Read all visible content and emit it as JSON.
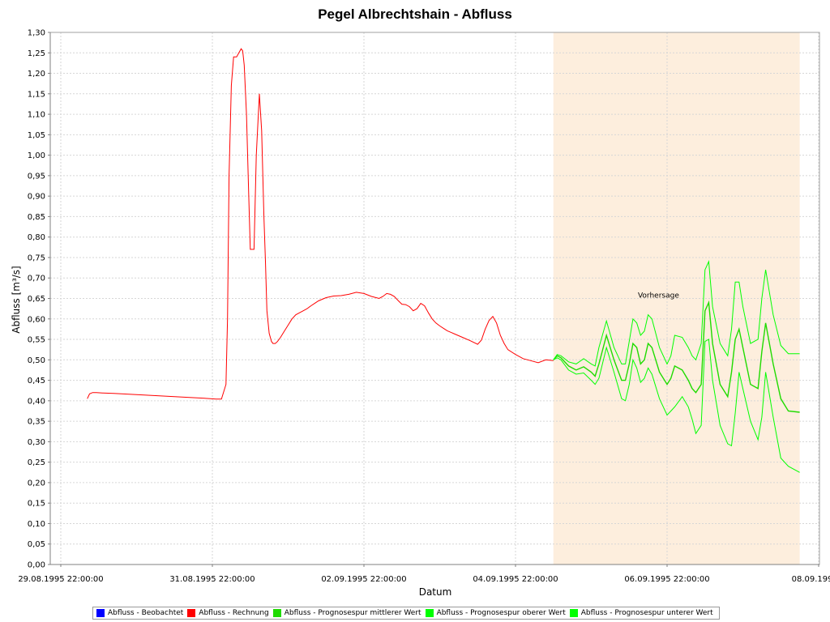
{
  "chart_data": {
    "type": "line",
    "title": "Pegel Albrechtshain - Abfluss",
    "xlabel": "Datum",
    "ylabel": "Abfluss [m³/s]",
    "xlim": [
      0,
      10
    ],
    "ylim": [
      0,
      1.3
    ],
    "grid": true,
    "x_ticks": [
      {
        "x": 0,
        "label": "29.08.1995 22:00:00"
      },
      {
        "x": 2,
        "label": "31.08.1995 22:00:00"
      },
      {
        "x": 4,
        "label": "02.09.1995 22:00:00"
      },
      {
        "x": 6,
        "label": "04.09.1995 22:00:00"
      },
      {
        "x": 8,
        "label": "06.09.1995 22:00:00"
      },
      {
        "x": 10,
        "label": "08.09.1995 2"
      }
    ],
    "y_ticks": [
      {
        "y": 0.0,
        "label": "0,00"
      },
      {
        "y": 0.05,
        "label": "0,05"
      },
      {
        "y": 0.1,
        "label": "0,10"
      },
      {
        "y": 0.15,
        "label": "0,15"
      },
      {
        "y": 0.2,
        "label": "0,20"
      },
      {
        "y": 0.25,
        "label": "0,25"
      },
      {
        "y": 0.3,
        "label": "0,30"
      },
      {
        "y": 0.35,
        "label": "0,35"
      },
      {
        "y": 0.4,
        "label": "0,40"
      },
      {
        "y": 0.45,
        "label": "0,45"
      },
      {
        "y": 0.5,
        "label": "0,50"
      },
      {
        "y": 0.55,
        "label": "0,55"
      },
      {
        "y": 0.6,
        "label": "0,60"
      },
      {
        "y": 0.65,
        "label": "0,65"
      },
      {
        "y": 0.7,
        "label": "0,70"
      },
      {
        "y": 0.75,
        "label": "0,75"
      },
      {
        "y": 0.8,
        "label": "0,80"
      },
      {
        "y": 0.85,
        "label": "0,85"
      },
      {
        "y": 0.9,
        "label": "0,90"
      },
      {
        "y": 0.95,
        "label": "0,95"
      },
      {
        "y": 1.0,
        "label": "1,00"
      },
      {
        "y": 1.05,
        "label": "1,05"
      },
      {
        "y": 1.1,
        "label": "1,10"
      },
      {
        "y": 1.15,
        "label": "1,15"
      },
      {
        "y": 1.2,
        "label": "1,20"
      },
      {
        "y": 1.25,
        "label": "1,25"
      },
      {
        "y": 1.3,
        "label": "1,30"
      }
    ],
    "forecast_region": {
      "x_start": 6.5,
      "x_end": 9.75,
      "label": "Vorhersage",
      "label_x": 7.85,
      "label_y": 0.66,
      "color": "#fdeedd"
    },
    "series": [
      {
        "name": "Abfluss - Beobachtet",
        "color": "#0000ff",
        "x": [
          0.35,
          6.5
        ],
        "y": [
          0.0,
          0.0
        ]
      },
      {
        "name": "Abfluss - Rechnung",
        "color": "#ff0000",
        "x": [
          0.35,
          0.38,
          0.42,
          0.47,
          0.55,
          0.7,
          0.9,
          1.1,
          1.3,
          1.5,
          1.7,
          1.9,
          2.05,
          2.12,
          2.18,
          2.2,
          2.22,
          2.25,
          2.28,
          2.32,
          2.35,
          2.38,
          2.4,
          2.42,
          2.45,
          2.48,
          2.5,
          2.52,
          2.55,
          2.58,
          2.62,
          2.65,
          2.68,
          2.7,
          2.72,
          2.75,
          2.78,
          2.8,
          2.83,
          2.86,
          2.9,
          2.95,
          3.0,
          3.05,
          3.1,
          3.15,
          3.2,
          3.25,
          3.3,
          3.35,
          3.4,
          3.5,
          3.6,
          3.7,
          3.8,
          3.9,
          4.0,
          4.1,
          4.2,
          4.25,
          4.3,
          4.35,
          4.4,
          4.45,
          4.5,
          4.55,
          4.6,
          4.65,
          4.7,
          4.75,
          4.8,
          4.85,
          4.9,
          4.95,
          5.0,
          5.05,
          5.1,
          5.15,
          5.2,
          5.3,
          5.4,
          5.5,
          5.55,
          5.6,
          5.65,
          5.7,
          5.75,
          5.8,
          5.85,
          5.9,
          6.0,
          6.1,
          6.2,
          6.3,
          6.4,
          6.5
        ],
        "y": [
          0.405,
          0.417,
          0.42,
          0.42,
          0.419,
          0.418,
          0.416,
          0.414,
          0.412,
          0.41,
          0.408,
          0.406,
          0.404,
          0.404,
          0.44,
          0.6,
          0.95,
          1.17,
          1.24,
          1.24,
          1.25,
          1.26,
          1.255,
          1.22,
          1.1,
          0.9,
          0.77,
          0.77,
          0.77,
          1.0,
          1.15,
          1.06,
          0.85,
          0.74,
          0.62,
          0.565,
          0.545,
          0.54,
          0.54,
          0.545,
          0.555,
          0.57,
          0.585,
          0.6,
          0.61,
          0.615,
          0.62,
          0.625,
          0.632,
          0.638,
          0.644,
          0.652,
          0.656,
          0.657,
          0.66,
          0.665,
          0.662,
          0.655,
          0.65,
          0.655,
          0.662,
          0.66,
          0.655,
          0.645,
          0.636,
          0.635,
          0.63,
          0.62,
          0.625,
          0.638,
          0.632,
          0.615,
          0.6,
          0.59,
          0.583,
          0.577,
          0.571,
          0.567,
          0.563,
          0.555,
          0.547,
          0.538,
          0.548,
          0.575,
          0.596,
          0.606,
          0.59,
          0.56,
          0.54,
          0.525,
          0.513,
          0.503,
          0.498,
          0.493,
          0.5,
          0.498
        ]
      },
      {
        "name": "Abfluss - Prognosespur mittlerer Wert",
        "color": "#1fdb00",
        "x": [
          6.5,
          6.55,
          6.6,
          6.7,
          6.8,
          6.9,
          7.0,
          7.05,
          7.1,
          7.2,
          7.3,
          7.4,
          7.45,
          7.5,
          7.55,
          7.6,
          7.65,
          7.7,
          7.75,
          7.8,
          7.9,
          8.0,
          8.05,
          8.1,
          8.2,
          8.28,
          8.33,
          8.38,
          8.45,
          8.5,
          8.55,
          8.6,
          8.7,
          8.8,
          8.85,
          8.9,
          8.95,
          9.0,
          9.1,
          9.2,
          9.25,
          9.3,
          9.4,
          9.5,
          9.6,
          9.75
        ],
        "y": [
          0.5,
          0.51,
          0.505,
          0.485,
          0.475,
          0.483,
          0.47,
          0.46,
          0.49,
          0.56,
          0.5,
          0.45,
          0.45,
          0.49,
          0.54,
          0.53,
          0.49,
          0.5,
          0.54,
          0.53,
          0.47,
          0.44,
          0.455,
          0.485,
          0.475,
          0.45,
          0.43,
          0.42,
          0.44,
          0.62,
          0.64,
          0.54,
          0.44,
          0.41,
          0.47,
          0.55,
          0.575,
          0.53,
          0.44,
          0.43,
          0.52,
          0.59,
          0.49,
          0.405,
          0.375,
          0.372
        ]
      },
      {
        "name": "Abfluss - Prognosespur oberer Wert",
        "color": "#00ff00",
        "x": [
          6.5,
          6.55,
          6.6,
          6.7,
          6.8,
          6.9,
          7.0,
          7.05,
          7.1,
          7.2,
          7.3,
          7.4,
          7.45,
          7.5,
          7.55,
          7.6,
          7.65,
          7.7,
          7.75,
          7.8,
          7.9,
          8.0,
          8.05,
          8.1,
          8.2,
          8.28,
          8.33,
          8.38,
          8.45,
          8.5,
          8.55,
          8.6,
          8.7,
          8.8,
          8.85,
          8.9,
          8.95,
          9.0,
          9.1,
          9.2,
          9.25,
          9.3,
          9.4,
          9.5,
          9.6,
          9.75
        ],
        "y": [
          0.5,
          0.513,
          0.51,
          0.495,
          0.49,
          0.503,
          0.49,
          0.485,
          0.53,
          0.595,
          0.53,
          0.49,
          0.49,
          0.545,
          0.6,
          0.59,
          0.56,
          0.57,
          0.61,
          0.6,
          0.53,
          0.49,
          0.51,
          0.56,
          0.555,
          0.53,
          0.51,
          0.5,
          0.54,
          0.72,
          0.74,
          0.63,
          0.54,
          0.51,
          0.575,
          0.69,
          0.69,
          0.63,
          0.54,
          0.55,
          0.65,
          0.72,
          0.61,
          0.535,
          0.515,
          0.515
        ]
      },
      {
        "name": "Abfluss - Prognosespur unterer Wert",
        "color": "#00ff00",
        "x": [
          6.5,
          6.55,
          6.6,
          6.7,
          6.8,
          6.9,
          7.0,
          7.05,
          7.1,
          7.2,
          7.3,
          7.4,
          7.45,
          7.5,
          7.55,
          7.6,
          7.65,
          7.7,
          7.75,
          7.8,
          7.9,
          8.0,
          8.05,
          8.1,
          8.2,
          8.28,
          8.33,
          8.38,
          8.45,
          8.5,
          8.55,
          8.6,
          8.7,
          8.8,
          8.85,
          8.9,
          8.95,
          9.0,
          9.1,
          9.2,
          9.25,
          9.3,
          9.4,
          9.5,
          9.6,
          9.75
        ],
        "y": [
          0.5,
          0.505,
          0.5,
          0.475,
          0.465,
          0.468,
          0.45,
          0.44,
          0.455,
          0.53,
          0.47,
          0.405,
          0.4,
          0.44,
          0.5,
          0.48,
          0.445,
          0.455,
          0.48,
          0.465,
          0.405,
          0.365,
          0.375,
          0.385,
          0.41,
          0.385,
          0.355,
          0.32,
          0.34,
          0.545,
          0.55,
          0.45,
          0.34,
          0.295,
          0.29,
          0.37,
          0.47,
          0.43,
          0.35,
          0.305,
          0.36,
          0.47,
          0.36,
          0.26,
          0.24,
          0.225
        ]
      }
    ]
  }
}
